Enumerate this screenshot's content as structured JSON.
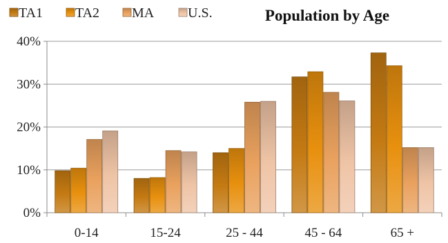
{
  "chart_data": {
    "type": "bar",
    "title": "Population by Age",
    "xlabel": "",
    "ylabel": "",
    "categories": [
      "0-14",
      "15-24",
      "25 - 44",
      "45 - 64",
      "65 +"
    ],
    "series": [
      {
        "name": "TA1",
        "color": "#C47A12",
        "values": [
          9.8,
          8.0,
          14.0,
          31.7,
          37.3
        ]
      },
      {
        "name": "TA2",
        "color": "#E8900E",
        "values": [
          10.4,
          8.2,
          15.0,
          32.9,
          34.3
        ]
      },
      {
        "name": "MA",
        "color": "#E9A15E",
        "values": [
          17.1,
          14.5,
          25.8,
          28.1,
          15.2
        ]
      },
      {
        "name": "U.S.",
        "color": "#EFC4A6",
        "values": [
          19.1,
          14.2,
          26.0,
          26.1,
          15.2
        ]
      }
    ],
    "ylim": [
      0,
      40
    ],
    "yticks": [
      0,
      10,
      20,
      30,
      40
    ],
    "ytick_labels": [
      "0%",
      "10%",
      "20%",
      "30%",
      "40%"
    ],
    "grid": true,
    "legend_position": "top-left"
  }
}
